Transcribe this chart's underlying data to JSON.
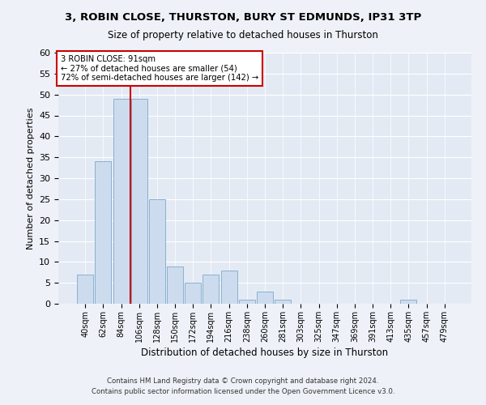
{
  "title": "3, ROBIN CLOSE, THURSTON, BURY ST EDMUNDS, IP31 3TP",
  "subtitle": "Size of property relative to detached houses in Thurston",
  "xlabel": "Distribution of detached houses by size in Thurston",
  "ylabel": "Number of detached properties",
  "categories": [
    "40sqm",
    "62sqm",
    "84sqm",
    "106sqm",
    "128sqm",
    "150sqm",
    "172sqm",
    "194sqm",
    "216sqm",
    "238sqm",
    "260sqm",
    "281sqm",
    "303sqm",
    "325sqm",
    "347sqm",
    "369sqm",
    "391sqm",
    "413sqm",
    "435sqm",
    "457sqm",
    "479sqm"
  ],
  "values": [
    7,
    34,
    49,
    49,
    25,
    9,
    5,
    7,
    8,
    1,
    3,
    1,
    0,
    0,
    0,
    0,
    0,
    0,
    1,
    0,
    0
  ],
  "bar_color": "#ccdcee",
  "bar_edge_color": "#8ab0d0",
  "annotation_label": "3 ROBIN CLOSE: 91sqm",
  "annotation_line1": "← 27% of detached houses are smaller (54)",
  "annotation_line2": "72% of semi-detached houses are larger (142) →",
  "annotation_box_color": "#ffffff",
  "annotation_box_edge": "#cc0000",
  "vline_color": "#cc0000",
  "ylim": [
    0,
    60
  ],
  "yticks": [
    0,
    5,
    10,
    15,
    20,
    25,
    30,
    35,
    40,
    45,
    50,
    55,
    60
  ],
  "footer_line1": "Contains HM Land Registry data © Crown copyright and database right 2024.",
  "footer_line2": "Contains public sector information licensed under the Open Government Licence v3.0.",
  "bg_color": "#eef2f8",
  "plot_bg_color": "#e4eaf4"
}
